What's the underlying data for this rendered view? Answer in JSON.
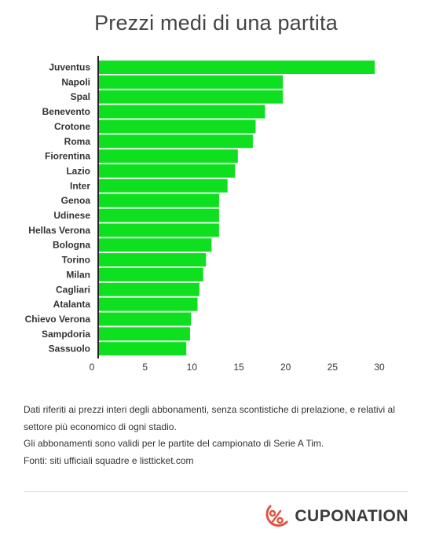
{
  "title": "Prezzi medi di una partita",
  "colors": {
    "bar": "#0ee01f",
    "axis": "#222222",
    "logo": "#e0533f"
  },
  "chart_data": {
    "type": "bar",
    "orientation": "horizontal",
    "title": "Prezzi medi di una partita",
    "xlabel": "",
    "ylabel": "",
    "xlim": [
      0,
      30
    ],
    "xticks": [
      0,
      5,
      10,
      15,
      20,
      25,
      30
    ],
    "grid": false,
    "categories": [
      "Juventus",
      "Napoli",
      "Spal",
      "Benevento",
      "Crotone",
      "Roma",
      "Fiorentina",
      "Lazio",
      "Inter",
      "Genoa",
      "Udinese",
      "Hellas Verona",
      "Bologna",
      "Torino",
      "Milan",
      "Cagliari",
      "Atalanta",
      "Chievo Verona",
      "Sampdoria",
      "Sassuolo"
    ],
    "values": [
      29.5,
      19.7,
      19.7,
      17.8,
      16.8,
      16.5,
      14.9,
      14.6,
      13.8,
      12.9,
      12.9,
      12.9,
      12.1,
      11.5,
      11.2,
      10.8,
      10.6,
      9.9,
      9.8,
      9.4
    ]
  },
  "notes": [
    "Dati riferiti ai prezzi interi degli abbonamenti, senza scontistiche di prelazione, e relativi al settore più economico di ogni stadio.",
    "Gli abbonamenti sono validi per le partite del campionato di Serie A Tim.",
    "Fonti: siti ufficiali squadre e listticket.com"
  ],
  "brand": {
    "name": "CUPONATION",
    "icon": "percent-icon"
  }
}
